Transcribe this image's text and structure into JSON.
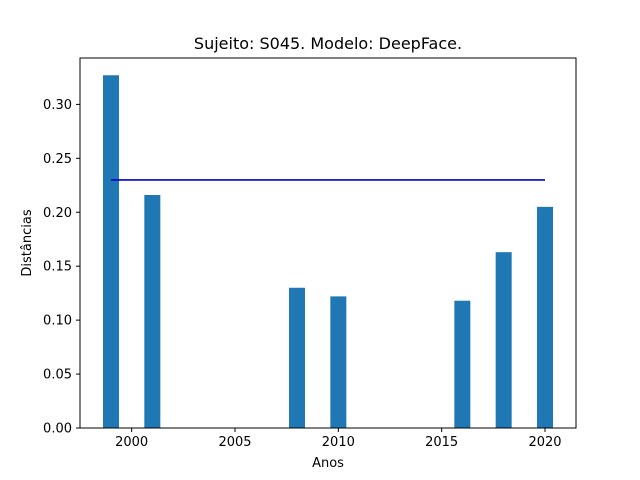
{
  "chart_data": {
    "type": "bar",
    "title": "Sujeito: S045. Modelo: DeepFace.",
    "xlabel": "Anos",
    "ylabel": "Distâncias",
    "x": [
      1999,
      2001,
      2008,
      2010,
      2016,
      2018,
      2020
    ],
    "values": [
      0.327,
      0.216,
      0.13,
      0.122,
      0.118,
      0.163,
      0.205
    ],
    "xlim": [
      1997.5,
      2021.5
    ],
    "ylim": [
      0,
      0.343
    ],
    "xticks": [
      2000,
      2005,
      2010,
      2015,
      2020
    ],
    "xtick_labels": [
      "2000",
      "2005",
      "2010",
      "2015",
      "2020"
    ],
    "yticks": [
      0,
      0.05,
      0.1,
      0.15,
      0.2,
      0.25,
      0.3
    ],
    "ytick_labels": [
      "0.00",
      "0.05",
      "0.10",
      "0.15",
      "0.20",
      "0.25",
      "0.30"
    ],
    "bar_color": "#1f77b4",
    "threshold": {
      "value": 0.23,
      "x_start": 1999,
      "x_end": 2020,
      "color": "#0000cc"
    },
    "grid": false,
    "legend": "none"
  }
}
